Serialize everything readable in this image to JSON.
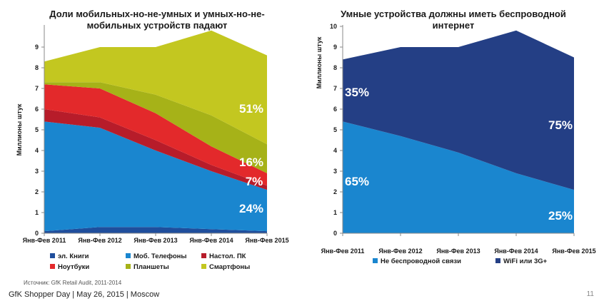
{
  "chart_data": [
    {
      "type": "area",
      "stacked": true,
      "title": "Доли мобильных-но-не-умных и умных-но-не-мобильных устройств падают",
      "ylabel": "Миллионы штук",
      "ylim": [
        0,
        10
      ],
      "yticks": [
        0,
        1,
        2,
        3,
        4,
        5,
        6,
        7,
        8,
        9
      ],
      "categories": [
        "Янв-Фев 2011",
        "Янв-Фев 2012",
        "Янв-Фев 2013",
        "Янв-Фев 2014",
        "Янв-Фев 2015"
      ],
      "series": [
        {
          "name": "эл. Книги",
          "color": "#1f4e9c",
          "values": [
            0.1,
            0.3,
            0.3,
            0.2,
            0.1
          ]
        },
        {
          "name": "Моб. Телефоны",
          "color": "#1a86cf",
          "values": [
            5.3,
            4.8,
            3.7,
            2.8,
            2.0
          ]
        },
        {
          "name": "Настол. ПК",
          "color": "#b71c2a",
          "values": [
            0.6,
            0.5,
            0.5,
            0.3,
            0.2
          ]
        },
        {
          "name": "Ноутбуки",
          "color": "#e3292b",
          "values": [
            1.2,
            1.4,
            1.3,
            0.9,
            0.6
          ]
        },
        {
          "name": "Планшеты",
          "color": "#a6b218",
          "values": [
            0.1,
            0.3,
            0.9,
            1.5,
            1.4
          ]
        },
        {
          "name": "Смартфоны",
          "color": "#c3c720",
          "values": [
            1.0,
            1.7,
            2.3,
            4.1,
            4.3
          ]
        }
      ],
      "annotations": [
        "51%",
        "16%",
        "7%",
        "24%"
      ]
    },
    {
      "type": "area",
      "stacked": true,
      "title": "Умные устройства должны иметь беспроводной интернет",
      "ylabel": "Миллионы штук",
      "ylim": [
        0,
        10
      ],
      "yticks": [
        0,
        1,
        2,
        3,
        4,
        5,
        6,
        7,
        8,
        9,
        10
      ],
      "categories": [
        "Янв-Фев 2011",
        "Янв-Фев 2012",
        "Янв-Фев 2013",
        "Янв-Фев 2014",
        "Янв-Фев 2015"
      ],
      "series": [
        {
          "name": "Не беспроводной связи",
          "color": "#1a86cf",
          "values": [
            5.4,
            4.7,
            3.9,
            2.9,
            2.1
          ]
        },
        {
          "name": "WiFi или 3G+",
          "color": "#243f85",
          "values": [
            3.0,
            4.3,
            5.1,
            6.9,
            6.4
          ]
        }
      ],
      "annotations": [
        "35%",
        "65%",
        "75%",
        "25%"
      ]
    }
  ],
  "source": "Источник: GfK Retail Audit, 2011-2014",
  "footer": "GfK Shopper Day | May 26, 2015 | Moscow",
  "page_number": "11"
}
